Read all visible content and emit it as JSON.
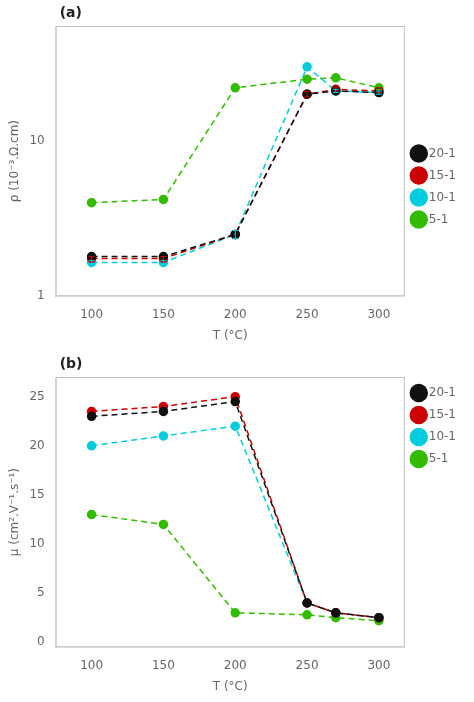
{
  "chart_data": [
    {
      "type": "line",
      "annotation": "(a)",
      "xlabel": "T (°C)",
      "ylabel": "ρ (10⁻³.Ω.cm)",
      "x": [
        100,
        150,
        200,
        250,
        270,
        300
      ],
      "xlim": [
        75,
        318
      ],
      "xticks": [
        100,
        150,
        200,
        250,
        300
      ],
      "ylim": [
        1.0,
        55.0
      ],
      "yticks": [
        1,
        10
      ],
      "log": "y",
      "grid": false,
      "legend": "center right",
      "marker": "circle",
      "line_style": "dashed",
      "series": [
        {
          "name": "20-1",
          "color": "#111111",
          "values": [
            1.8,
            1.8,
            2.5,
            20.0,
            21.0,
            20.5
          ],
          "yerr": [
            0.05,
            0.05,
            0.15,
            0.8,
            0.5,
            0.5
          ]
        },
        {
          "name": "15-1",
          "color": "#cc0000",
          "values": [
            1.75,
            1.75,
            2.5,
            20.0,
            21.5,
            21.0
          ],
          "yerr": [
            0.05,
            0.05,
            0.15,
            0.8,
            0.5,
            0.5
          ]
        },
        {
          "name": "10-1",
          "color": "#00ccdd",
          "values": [
            1.65,
            1.65,
            2.5,
            30.0,
            21.0,
            20.5
          ],
          "yerr": [
            0.05,
            0.05,
            0.15,
            1.5,
            0.5,
            0.5
          ]
        },
        {
          "name": "5-1",
          "color": "#33bb00",
          "values": [
            4.0,
            4.2,
            22.0,
            25.0,
            25.5,
            22.0
          ],
          "yerr": [
            0.0,
            0.0,
            0.0,
            0.0,
            0.5,
            0.5
          ]
        }
      ]
    },
    {
      "type": "line",
      "annotation": "(b)",
      "xlabel": "T (°C)",
      "ylabel": "μ (cm².V⁻¹.s⁻¹)",
      "x": [
        100,
        150,
        200,
        250,
        270,
        300
      ],
      "xlim": [
        75,
        318
      ],
      "xticks": [
        100,
        150,
        200,
        250,
        300
      ],
      "ylim": [
        -0.5,
        27
      ],
      "yticks": [
        0,
        5,
        10,
        15,
        20,
        25
      ],
      "grid": false,
      "legend": "upper right",
      "marker": "circle",
      "line_style": "dashed",
      "series": [
        {
          "name": "20-1",
          "color": "#111111",
          "values": [
            23.0,
            23.5,
            24.5,
            4.0,
            3.0,
            2.5
          ]
        },
        {
          "name": "15-1",
          "color": "#cc0000",
          "values": [
            23.5,
            24.0,
            25.0,
            4.0,
            3.0,
            2.5
          ]
        },
        {
          "name": "10-1",
          "color": "#00ccdd",
          "values": [
            20.0,
            21.0,
            22.0,
            4.0,
            3.0,
            2.5
          ]
        },
        {
          "name": "5-1",
          "color": "#33bb00",
          "values": [
            13.0,
            12.0,
            3.0,
            2.8,
            2.5,
            2.2
          ]
        }
      ]
    }
  ]
}
